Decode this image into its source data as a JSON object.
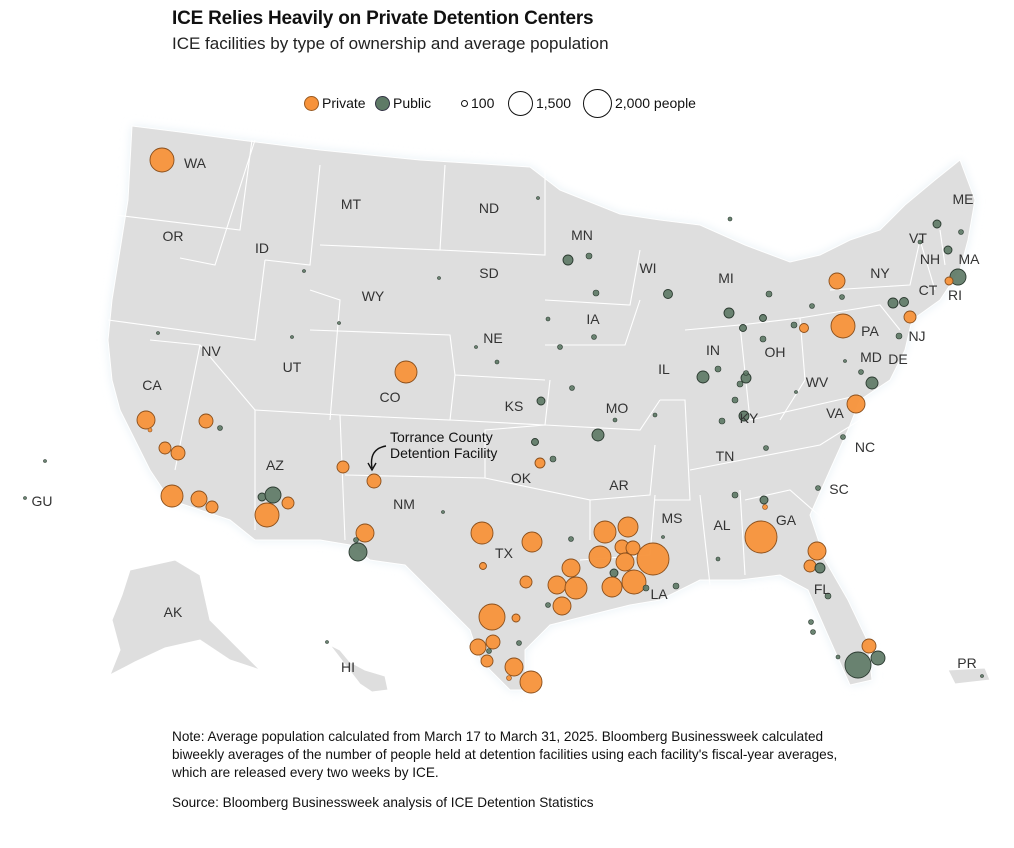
{
  "title": "ICE Relies Heavily on Private Detention Centers",
  "subtitle": "ICE facilities by type of ownership and average population",
  "legend": {
    "private": "Private",
    "public": "Public",
    "size_small": "100",
    "size_mid": "1,500",
    "size_large": "2,000 people"
  },
  "colors": {
    "private": "#f7923a",
    "public": "#5e7a66",
    "land": "#dedede",
    "border": "#ffffff"
  },
  "callout": {
    "line1": "Torrance County",
    "line2": "Detention Facility"
  },
  "states": [
    "WA",
    "OR",
    "CA",
    "NV",
    "ID",
    "MT",
    "WY",
    "UT",
    "AZ",
    "CO",
    "NM",
    "ND",
    "SD",
    "NE",
    "KS",
    "OK",
    "TX",
    "MN",
    "IA",
    "MO",
    "AR",
    "LA",
    "WI",
    "IL",
    "MI",
    "IN",
    "OH",
    "KY",
    "TN",
    "MS",
    "AL",
    "GA",
    "FL",
    "SC",
    "NC",
    "VA",
    "WV",
    "PA",
    "NY",
    "VT",
    "NH",
    "ME",
    "MA",
    "RI",
    "CT",
    "NJ",
    "MD",
    "DE",
    "AK",
    "HI",
    "PR",
    "GU"
  ],
  "note": "Note: Average population calculated from March 17 to March 31, 2025. Bloomberg Businessweek calculated biweekly averages of the number of people held at detention facilities using each facility's fiscal-year averages, which are released every two weeks by ICE.",
  "source": "Source: Bloomberg Businessweek analysis of ICE Detention Statistics"
}
